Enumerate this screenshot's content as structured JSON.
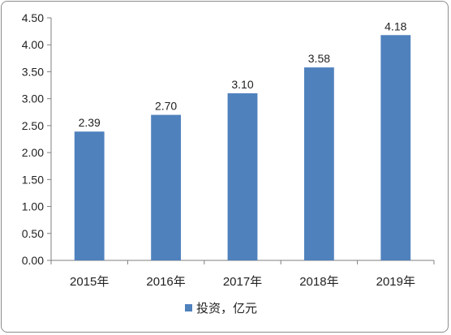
{
  "chart_data": {
    "type": "bar",
    "categories": [
      "2015年",
      "2016年",
      "2017年",
      "2018年",
      "2019年"
    ],
    "series": [
      {
        "name": "投资，亿元",
        "values": [
          2.39,
          2.7,
          3.1,
          3.58,
          4.18
        ],
        "labels": [
          "2.39",
          "2.70",
          "3.10",
          "3.58",
          "4.18"
        ]
      }
    ],
    "ylim": [
      0,
      4.5
    ],
    "yticks": [
      "0.00",
      "0.50",
      "1.00",
      "1.50",
      "2.00",
      "2.50",
      "3.00",
      "3.50",
      "4.00",
      "4.50"
    ],
    "legend_position": "bottom",
    "grid": false,
    "colors": {
      "bar": "#4f81bd",
      "axis": "#7f7f7f",
      "text": "#222222"
    }
  }
}
